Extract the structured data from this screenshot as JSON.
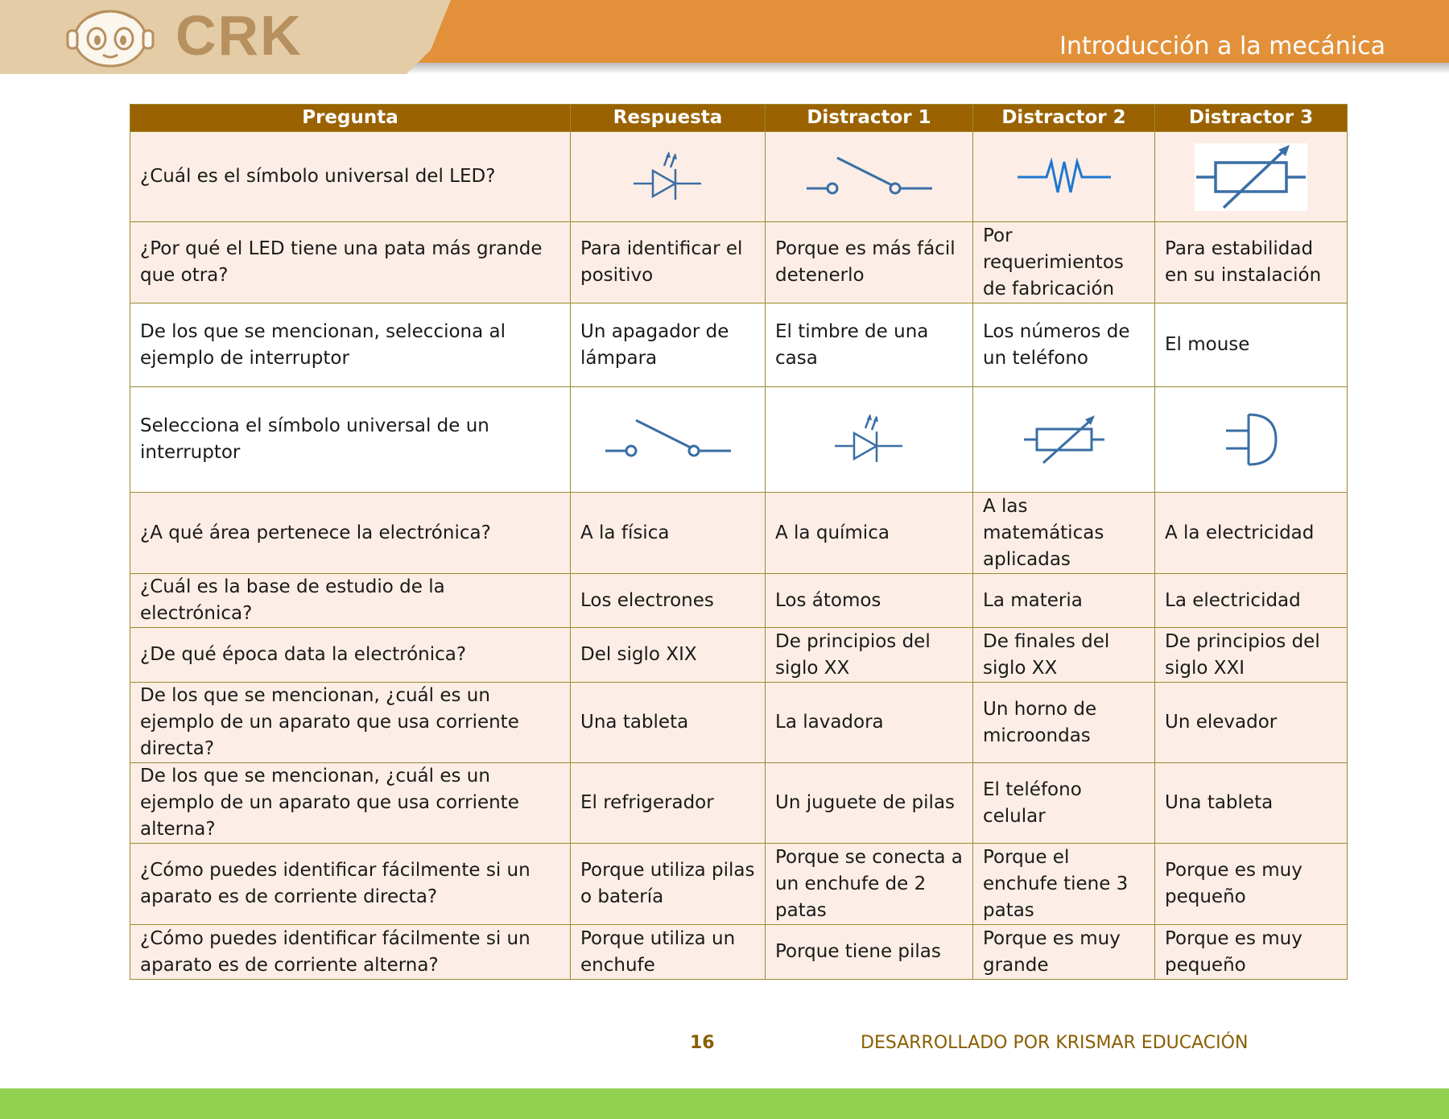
{
  "header": {
    "logo_text": "CRK",
    "title": "Introducción a la mecánica"
  },
  "table": {
    "columns": [
      "Pregunta",
      "Respuesta",
      "Distractor 1",
      "Distractor 2",
      "Distractor 3"
    ],
    "rows": [
      {
        "q": "¿Cuál es el símbolo universal del LED?",
        "cells": [
          "icon:led-symbol",
          "icon:switch-symbol",
          "icon:resistor-symbol",
          "icon:variable-resistor-symbol"
        ]
      },
      {
        "q": "¿Por qué el LED tiene una pata más grande que otra?",
        "cells": [
          "Para identificar el positivo",
          "Porque es más fácil detenerlo",
          "Por requerimientos de fabricación",
          "Para estabilidad en su instalación"
        ]
      },
      {
        "q": "De los que se mencionan, selecciona al ejemplo de interruptor",
        "cells": [
          "Un apagador de lámpara",
          "El timbre de una casa",
          "Los números de un teléfono",
          "El mouse"
        ]
      },
      {
        "q": "Selecciona el símbolo universal de un interruptor",
        "cells": [
          "icon:switch-symbol",
          "icon:led-symbol",
          "icon:variable-resistor-symbol",
          "icon:and-gate-symbol"
        ]
      },
      {
        "q": "¿A qué área pertenece la electrónica?",
        "cells": [
          "A la física",
          "A la química",
          "A las matemáticas aplicadas",
          "A la electricidad"
        ]
      },
      {
        "q": "¿Cuál es la base de estudio de la electrónica?",
        "cells": [
          "Los electrones",
          "Los átomos",
          "La materia",
          "La electricidad"
        ]
      },
      {
        "q": "¿De qué época data la electrónica?",
        "cells": [
          "Del siglo XIX",
          "De principios del siglo XX",
          "De finales del siglo XX",
          "De principios del siglo XXI"
        ]
      },
      {
        "q": "De los que se mencionan, ¿cuál es un ejemplo de un aparato que usa corriente directa?",
        "cells": [
          "Una tableta",
          "La lavadora",
          "Un horno de microondas",
          "Un elevador"
        ]
      },
      {
        "q": "De los que se mencionan, ¿cuál es un ejemplo de un aparato que usa corriente alterna?",
        "cells": [
          "El refrigerador",
          "Un juguete de pilas",
          "El teléfono celular",
          "Una tableta"
        ]
      },
      {
        "q": "¿Cómo puedes identificar fácilmente si un aparato es de corriente directa?",
        "cells": [
          "Porque utiliza pilas o batería",
          "Porque se conecta a un enchufe de 2 patas",
          "Porque el enchufe tiene 3 patas",
          "Porque es muy pequeño"
        ]
      },
      {
        "q": "¿Cómo puedes identificar fácilmente si un aparato es de corriente alterna?",
        "cells": [
          "Porque utiliza un enchufe",
          "Porque tiene pilas",
          "Porque es muy grande",
          "Porque es muy pequeño"
        ]
      }
    ]
  },
  "footer": {
    "page_number": "16",
    "credit": "DESARROLLADO POR KRISMAR EDUCACIÓN"
  },
  "colors": {
    "header_orange": "#e2913a",
    "header_tab": "#e4cca6",
    "table_header": "#9a6200",
    "row_alt": "#fceee6",
    "symbol_blue": "#3a6ea5",
    "footer_green": "#92d050"
  }
}
